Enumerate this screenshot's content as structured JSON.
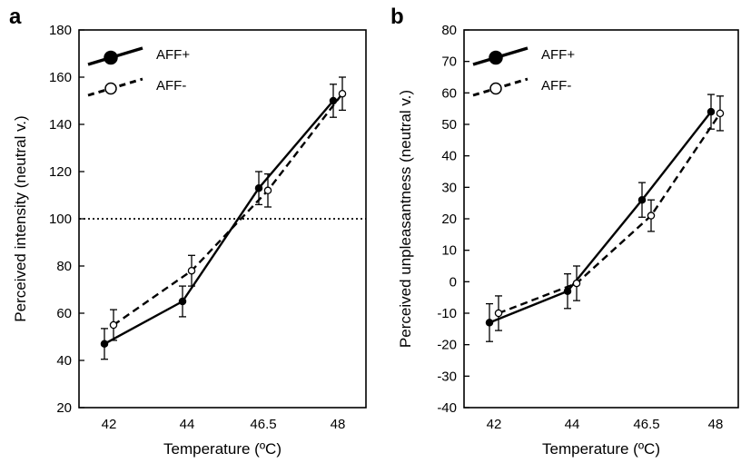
{
  "chart_data": [
    {
      "panel": "a",
      "type": "line",
      "categories": [
        "42",
        "44",
        "46.5",
        "48"
      ],
      "xlabel": "Temperature (ºC)",
      "ylabel": "Perceived intensity (neutral v.)",
      "ylim": [
        20,
        180
      ],
      "yticks": [
        "20",
        "40",
        "60",
        "80",
        "100",
        "120",
        "140",
        "160",
        "180"
      ],
      "reference_line": 100,
      "legend_position": "top-left",
      "series": [
        {
          "name": "AFF+",
          "style": "solid, filled marker",
          "values": [
            47,
            65,
            113,
            150
          ],
          "errors": [
            6.5,
            6.5,
            7,
            7
          ]
        },
        {
          "name": "AFF-",
          "style": "dashed, open marker",
          "values": [
            55,
            78,
            112,
            153
          ],
          "errors": [
            6.5,
            6.5,
            7,
            7
          ]
        }
      ]
    },
    {
      "panel": "b",
      "type": "line",
      "categories": [
        "42",
        "44",
        "46.5",
        "48"
      ],
      "xlabel": "Temperature (ºC)",
      "ylabel": "Perceived unpleasantness (neutral v.)",
      "ylim": [
        -40,
        80
      ],
      "yticks": [
        "-40",
        "-30",
        "-20",
        "-10",
        "0",
        "10",
        "20",
        "30",
        "40",
        "50",
        "60",
        "70",
        "80"
      ],
      "legend_position": "top-left",
      "series": [
        {
          "name": "AFF+",
          "style": "solid, filled marker",
          "values": [
            -13,
            -3,
            26,
            54
          ],
          "errors": [
            6,
            5.5,
            5.5,
            5.5
          ]
        },
        {
          "name": "AFF-",
          "style": "dashed, open marker",
          "values": [
            -10,
            -0.5,
            21,
            53.5
          ],
          "errors": [
            5.5,
            5.5,
            5,
            5.5
          ]
        }
      ]
    }
  ]
}
